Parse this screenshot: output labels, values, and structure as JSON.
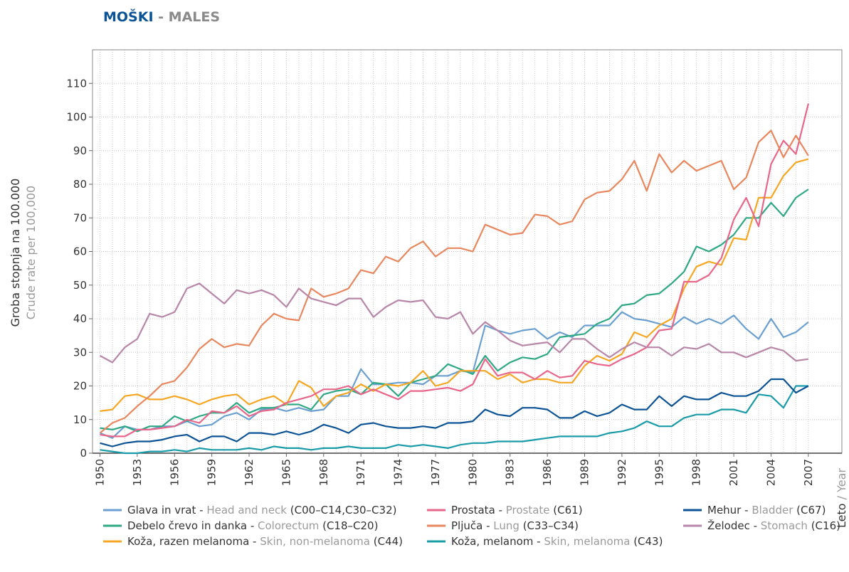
{
  "chart_data": {
    "type": "line",
    "title": [
      "MOŠKI",
      " - MALES"
    ],
    "ylabel": "Groba stopnja na 100.000",
    "ylabel_en": "Crude rate per 100,000",
    "xlabel": [
      "Leto",
      " / Year"
    ],
    "x": [
      1950,
      1951,
      1952,
      1953,
      1954,
      1955,
      1956,
      1957,
      1958,
      1959,
      1960,
      1961,
      1962,
      1963,
      1964,
      1965,
      1966,
      1967,
      1968,
      1969,
      1970,
      1971,
      1972,
      1973,
      1974,
      1975,
      1976,
      1977,
      1978,
      1979,
      1980,
      1981,
      1982,
      1983,
      1984,
      1985,
      1986,
      1987,
      1988,
      1989,
      1990,
      1991,
      1992,
      1993,
      1994,
      1995,
      1996,
      1997,
      1998,
      1999,
      2000,
      2001,
      2002,
      2003,
      2004,
      2005,
      2006,
      2007
    ],
    "xlim": [
      1949.4,
      2009.7
    ],
    "xticks": [
      1950,
      1953,
      1956,
      1959,
      1962,
      1965,
      1968,
      1971,
      1974,
      1977,
      1980,
      1983,
      1986,
      1989,
      1992,
      1995,
      1998,
      2001,
      2004,
      2007
    ],
    "ylim": [
      0,
      120
    ],
    "yticks": [
      0,
      10,
      20,
      30,
      40,
      50,
      60,
      70,
      80,
      90,
      100,
      110
    ],
    "grid": true,
    "series": [
      {
        "name": [
          "Glava in vrat - ",
          "Head and neck",
          " (C00–C14,C30–C32)"
        ],
        "color": "#6a9fd0",
        "values": [
          6,
          4.5,
          8,
          7,
          7,
          8,
          8,
          9.5,
          8,
          8.5,
          11,
          12,
          10,
          13,
          13.5,
          12.5,
          13.5,
          12.5,
          13,
          17,
          17,
          25,
          20.5,
          20.5,
          21,
          21,
          20.5,
          23,
          23,
          24.5,
          24,
          38,
          36.5,
          35.5,
          36.5,
          37,
          34,
          36,
          34.5,
          38,
          38,
          38,
          42,
          40,
          39.5,
          38.5,
          37.5,
          40.5,
          38.5,
          40,
          38.5,
          41,
          37,
          34,
          40,
          34.5,
          36,
          39
        ]
      },
      {
        "name": [
          "Debelo črevo in danka - ",
          "Colorectum",
          " (C18–C20)"
        ],
        "color": "#2fa884",
        "values": [
          7.5,
          7,
          8,
          6.5,
          8,
          8,
          11,
          9.5,
          11,
          12,
          12,
          15,
          12,
          13.5,
          13.5,
          14.5,
          14.5,
          13,
          17.5,
          18.5,
          19,
          17.5,
          21,
          20.5,
          17,
          21,
          22,
          23,
          26.5,
          25,
          23.5,
          29,
          24.5,
          27,
          28.5,
          28,
          29.5,
          34.5,
          35,
          35.5,
          38.5,
          40,
          44,
          44.5,
          47,
          47.5,
          50.5,
          54,
          61.5,
          60,
          62,
          65,
          70,
          70,
          74.5,
          70.5,
          76,
          78.5
        ]
      },
      {
        "name": [
          "Koža, razen melanoma - ",
          "Skin, non-melanoma",
          " (C44)"
        ],
        "color": "#f5a623",
        "values": [
          12.5,
          13,
          17,
          17.5,
          16,
          16,
          17,
          16,
          14.5,
          16,
          17,
          17.5,
          14.5,
          16,
          17,
          14.5,
          21.5,
          19.5,
          14,
          17,
          18,
          20.5,
          18.5,
          20.5,
          20,
          21,
          24.5,
          20,
          21,
          24.5,
          24.5,
          24.5,
          22,
          23.5,
          21,
          22,
          22,
          21,
          21,
          26,
          29,
          27.5,
          29.5,
          36,
          34.5,
          38,
          40,
          49,
          55.5,
          57,
          56,
          64,
          63.5,
          76,
          76,
          82.5,
          86.5,
          87.5
        ]
      },
      {
        "name": [
          "Prostata - ",
          "Prostate",
          " (C61)"
        ],
        "color": "#e8668a",
        "values": [
          5.5,
          5,
          5,
          7,
          7,
          7.5,
          8,
          10,
          9,
          12.5,
          12,
          14,
          11,
          12.5,
          13,
          15,
          16,
          17,
          19,
          19,
          20,
          17.5,
          19,
          17.5,
          16,
          18.5,
          18.5,
          19,
          19.5,
          18.5,
          20.5,
          28,
          23,
          24,
          24,
          22,
          24.5,
          22.5,
          23,
          27.5,
          26.5,
          26,
          28,
          29.5,
          31.5,
          36.5,
          37,
          51,
          51,
          53,
          58,
          69.5,
          76,
          67.5,
          86,
          93,
          89,
          104
        ]
      },
      {
        "name": [
          "Pljuča - ",
          "Lung",
          " (C33–C34)"
        ],
        "color": "#e8875e",
        "values": [
          6,
          9,
          10.5,
          14,
          17,
          20.5,
          21.5,
          25.5,
          31,
          34,
          31.5,
          32.5,
          32,
          38,
          41.5,
          40,
          39.5,
          49,
          46.5,
          47.5,
          49,
          54.5,
          53.5,
          58.5,
          57,
          61,
          63,
          58.5,
          61,
          61,
          60,
          68,
          66.5,
          65,
          65.5,
          71,
          70.5,
          68,
          69,
          75.5,
          77.5,
          78,
          81.5,
          87,
          78,
          89,
          83.5,
          87,
          84,
          85.5,
          87,
          78.5,
          82,
          92.5,
          96,
          88,
          94.5,
          88.5
        ]
      },
      {
        "name": [
          "Koža, melanom - ",
          "Skin, melanoma",
          " (C43)"
        ],
        "color": "#1a9ba8",
        "values": [
          1,
          0.5,
          0,
          0,
          0.5,
          0.5,
          1,
          0.5,
          1.5,
          1,
          1,
          1,
          1.5,
          1,
          2,
          1.5,
          1.5,
          1,
          1.5,
          1.5,
          2,
          1.5,
          1.5,
          1.5,
          2.5,
          2,
          2.5,
          2,
          1.5,
          2.5,
          3,
          3,
          3.5,
          3.5,
          3.5,
          4,
          4.5,
          5,
          5,
          5,
          5,
          6,
          6.5,
          7.5,
          9.5,
          8,
          8,
          10.5,
          11.5,
          11.5,
          13,
          13,
          12,
          17.5,
          17,
          13.5,
          20,
          20
        ]
      },
      {
        "name": [
          "Mehur - ",
          "Bladder",
          " (C67)"
        ],
        "color": "#0b5394",
        "values": [
          3,
          2,
          3,
          3.5,
          3.5,
          4,
          5,
          5.5,
          3.5,
          5,
          5,
          3.5,
          6,
          6,
          5.5,
          6.5,
          5.5,
          6.5,
          8.5,
          7.5,
          6,
          8.5,
          9,
          8,
          7.5,
          7.5,
          8,
          7.5,
          9,
          9,
          9.5,
          13,
          11.5,
          11,
          13.5,
          13.5,
          13,
          10.5,
          10.5,
          12.5,
          11,
          12,
          14.5,
          13,
          13,
          17,
          14,
          17,
          16,
          16,
          18,
          17,
          17,
          18.5,
          22,
          22,
          18,
          20
        ]
      },
      {
        "name": [
          "Želodec - ",
          "Stomach",
          " (C16)"
        ],
        "color": "#b886a8",
        "values": [
          29,
          27,
          31.5,
          34,
          41.5,
          40.5,
          42,
          49,
          50.5,
          47.5,
          44.5,
          48.5,
          47.5,
          48.5,
          47,
          43.5,
          49,
          46,
          45,
          44,
          46,
          46,
          40.5,
          43.5,
          45.5,
          45,
          45.5,
          40.5,
          40,
          42,
          35.5,
          39,
          36.5,
          33.5,
          32,
          32.5,
          33,
          30,
          34,
          34,
          31,
          28.5,
          31,
          33,
          31.5,
          31.5,
          29,
          31.5,
          31,
          32.5,
          30,
          30,
          28.5,
          30,
          31.5,
          30.5,
          27.5,
          28
        ]
      }
    ]
  }
}
